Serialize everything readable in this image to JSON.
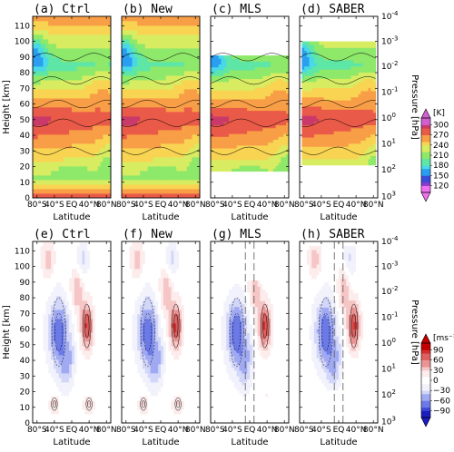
{
  "chart_data": [
    {
      "type": "heatmap",
      "title": "(a) Ctrl",
      "xlabel": "Latitude",
      "ylabel": "Height [km]",
      "row": "temperature"
    },
    {
      "type": "heatmap",
      "title": "(b) New",
      "xlabel": "Latitude",
      "ylabel": "",
      "row": "temperature"
    },
    {
      "type": "heatmap",
      "title": "(c) MLS",
      "xlabel": "Latitude",
      "ylabel": "",
      "row": "temperature",
      "coverage_km": [
        17,
        91
      ],
      "coverage_lat": [
        -90,
        90
      ]
    },
    {
      "type": "heatmap",
      "title": "(d) SABER",
      "xlabel": "Latitude",
      "ylabel": "Pressure [hPa]",
      "row": "temperature",
      "coverage_km": [
        21,
        100
      ],
      "coverage_lat": [
        -85,
        85
      ]
    },
    {
      "type": "heatmap",
      "title": "(e) Ctrl",
      "xlabel": "Latitude",
      "ylabel": "Height [km]",
      "row": "wind"
    },
    {
      "type": "heatmap",
      "title": "(f) New",
      "xlabel": "Latitude",
      "ylabel": "",
      "row": "wind"
    },
    {
      "type": "heatmap",
      "title": "(g) MLS",
      "xlabel": "Latitude",
      "ylabel": "",
      "row": "wind",
      "coverage_km": [
        17,
        91
      ],
      "coverage_lat": [
        -90,
        90
      ],
      "dashed_lat": [
        -10,
        10
      ]
    },
    {
      "type": "heatmap",
      "title": "(h) SABER",
      "xlabel": "Latitude",
      "ylabel": "Pressure [hPa]",
      "row": "wind",
      "coverage_km": [
        21,
        113
      ],
      "coverage_lat": [
        -85,
        85
      ],
      "dashed_lat": [
        -10,
        10
      ]
    }
  ],
  "axes": {
    "height_ticks": [
      "0",
      "10",
      "20",
      "30",
      "40",
      "50",
      "60",
      "70",
      "80",
      "90",
      "100",
      "110"
    ],
    "height_values": [
      0,
      10,
      20,
      30,
      40,
      50,
      60,
      70,
      80,
      90,
      100,
      110
    ],
    "height_range": [
      0,
      116
    ],
    "lat_ticks": [
      "80°S",
      "40°S",
      "EQ",
      "40°N",
      "80°N"
    ],
    "lat_values": [
      -80,
      -40,
      0,
      40,
      80
    ],
    "lat_range": [
      -90,
      90
    ],
    "pressure_ticks": [
      {
        "base": "10",
        "exp": "-4",
        "km": 116
      },
      {
        "base": "10",
        "exp": "-3",
        "km": 100
      },
      {
        "base": "10",
        "exp": "-2",
        "km": 84
      },
      {
        "base": "10",
        "exp": "-1",
        "km": 67.5
      },
      {
        "base": "10",
        "exp": "0",
        "km": 51
      },
      {
        "base": "10",
        "exp": "1",
        "km": 34.5
      },
      {
        "base": "10",
        "exp": "2",
        "km": 18
      },
      {
        "base": "10",
        "exp": "3",
        "km": 1
      }
    ]
  },
  "colorbars": {
    "temperature": {
      "unit": "[K]",
      "labels": [
        "300",
        "270",
        "240",
        "210",
        "180",
        "150",
        "120"
      ],
      "values": [
        300,
        270,
        240,
        210,
        180,
        150,
        120
      ],
      "range": [
        100,
        320
      ],
      "colors": [
        "#d060d0",
        "#8a3cc8",
        "#3c4cd8",
        "#2a9ef0",
        "#48d8e8",
        "#5ee6a6",
        "#8ee86a",
        "#d8ec62",
        "#f8d452",
        "#f89e46",
        "#ea5a48",
        "#c93a6a",
        "#f070f0"
      ]
    },
    "wind": {
      "unit": "[ms⁻¹]",
      "labels": [
        "90",
        "60",
        "30",
        "0",
        "−30",
        "−60",
        "−90"
      ],
      "values": [
        90,
        60,
        30,
        0,
        -30,
        -60,
        -90
      ],
      "range": [
        -110,
        110
      ],
      "colors": [
        "#1c1cbf",
        "#3c48d8",
        "#6c7ae8",
        "#a0aaf2",
        "#d2d6f8",
        "#f2f2fc",
        "#ffffff",
        "#fcecec",
        "#f6c6c6",
        "#ec9494",
        "#e06060",
        "#d42e2e",
        "#c40000"
      ]
    }
  }
}
